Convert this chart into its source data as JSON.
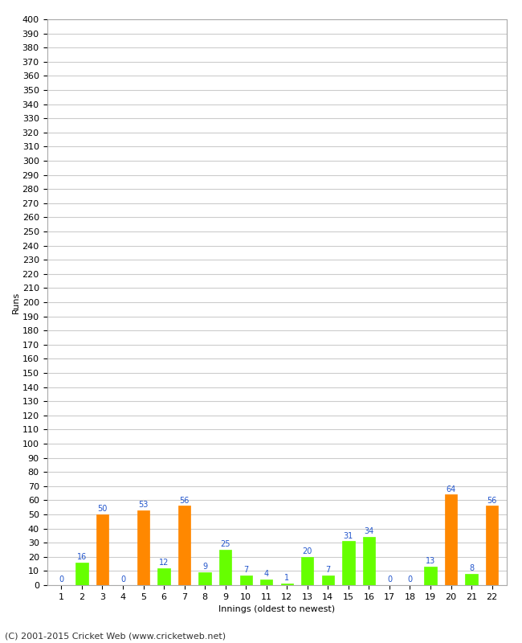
{
  "title": "",
  "xlabel": "Innings (oldest to newest)",
  "ylabel": "Runs",
  "innings": [
    1,
    2,
    3,
    4,
    5,
    6,
    7,
    8,
    9,
    10,
    11,
    12,
    13,
    14,
    15,
    16,
    17,
    18,
    19,
    20,
    21,
    22
  ],
  "values": [
    0,
    16,
    50,
    0,
    53,
    12,
    56,
    9,
    25,
    7,
    4,
    1,
    20,
    7,
    31,
    34,
    0,
    0,
    13,
    64,
    8,
    56
  ],
  "colors": [
    "#ff8800",
    "#66ff00",
    "#ff8800",
    "#ff8800",
    "#ff8800",
    "#66ff00",
    "#ff8800",
    "#66ff00",
    "#66ff00",
    "#66ff00",
    "#66ff00",
    "#66ff00",
    "#66ff00",
    "#66ff00",
    "#66ff00",
    "#66ff00",
    "#66ff00",
    "#66ff00",
    "#66ff00",
    "#ff8800",
    "#66ff00",
    "#ff8800"
  ],
  "ylim": [
    0,
    400
  ],
  "yticks": [
    0,
    10,
    20,
    30,
    40,
    50,
    60,
    70,
    80,
    90,
    100,
    110,
    120,
    130,
    140,
    150,
    160,
    170,
    180,
    190,
    200,
    210,
    220,
    230,
    240,
    250,
    260,
    270,
    280,
    290,
    300,
    310,
    320,
    330,
    340,
    350,
    360,
    370,
    380,
    390,
    400
  ],
  "background_color": "#ffffff",
  "grid_color": "#cccccc",
  "label_color": "#2255cc",
  "label_fontsize": 7,
  "axis_fontsize": 8,
  "tick_fontsize": 8,
  "footer": "(C) 2001-2015 Cricket Web (www.cricketweb.net)",
  "footer_fontsize": 8
}
